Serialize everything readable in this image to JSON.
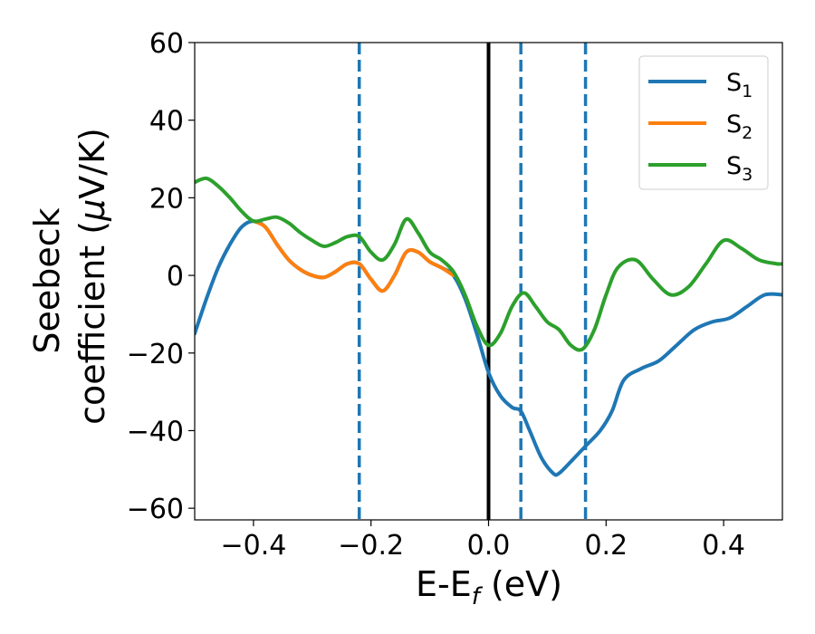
{
  "chart_data": {
    "type": "line",
    "xlabel": {
      "main": "E-E",
      "sub": "f",
      "unit": " (eV)"
    },
    "ylabel": {
      "line1": "Seebeck",
      "line2": "coefficient  (",
      "mu": "μ",
      "unit": "V/K)"
    },
    "xlim": [
      -0.5,
      0.5
    ],
    "ylim": [
      -63,
      60
    ],
    "xticks": [
      {
        "value": -0.4,
        "label": "−0.4"
      },
      {
        "value": -0.2,
        "label": "−0.2"
      },
      {
        "value": 0.0,
        "label": "0.0"
      },
      {
        "value": 0.2,
        "label": "0.2"
      },
      {
        "value": 0.4,
        "label": "0.4"
      }
    ],
    "yticks": [
      {
        "value": 60,
        "label": "60"
      },
      {
        "value": 40,
        "label": "40"
      },
      {
        "value": 20,
        "label": "20"
      },
      {
        "value": 0,
        "label": "0"
      },
      {
        "value": -20,
        "label": "−20"
      },
      {
        "value": -40,
        "label": "−40"
      },
      {
        "value": -60,
        "label": "−60"
      }
    ],
    "grid": false,
    "legend_position": "top-right",
    "series": [
      {
        "name": "S",
        "sub": "1",
        "color": "#1f77b4",
        "x": [
          -0.5,
          -0.48,
          -0.46,
          -0.44,
          -0.42,
          -0.4,
          -0.38,
          -0.36,
          -0.34,
          -0.32,
          -0.3,
          -0.28,
          -0.26,
          -0.24,
          -0.22,
          -0.2,
          -0.18,
          -0.16,
          -0.14,
          -0.12,
          -0.1,
          -0.08,
          -0.06,
          -0.04,
          -0.02,
          0.0,
          0.02,
          0.04,
          0.055,
          0.07,
          0.09,
          0.11,
          0.12,
          0.14,
          0.165,
          0.19,
          0.21,
          0.23,
          0.26,
          0.29,
          0.32,
          0.35,
          0.38,
          0.41,
          0.44,
          0.47,
          0.5
        ],
        "y": [
          -15,
          -6,
          2,
          8,
          12.5,
          14,
          12.5,
          8,
          4,
          1.5,
          0,
          -0.5,
          1,
          3,
          3,
          -1,
          -4,
          0,
          6,
          6,
          3.5,
          2,
          0,
          -6,
          -15,
          -25,
          -31,
          -34,
          -35,
          -40,
          -47,
          -51,
          -51,
          -48,
          -44,
          -40,
          -35,
          -27,
          -24,
          -22,
          -18,
          -14,
          -12,
          -11,
          -8,
          -5,
          -5
        ]
      },
      {
        "name": "S",
        "sub": "2",
        "color": "#ff7f0e",
        "x": [
          -0.4,
          -0.38,
          -0.36,
          -0.34,
          -0.32,
          -0.3,
          -0.28,
          -0.26,
          -0.24,
          -0.22,
          -0.2,
          -0.18,
          -0.16,
          -0.14,
          -0.12,
          -0.1,
          -0.08,
          -0.06
        ],
        "y": [
          14,
          12.5,
          8,
          4,
          1.5,
          0,
          -0.5,
          1,
          3,
          3,
          -1,
          -4,
          0,
          6,
          6,
          3.5,
          2,
          0
        ]
      },
      {
        "name": "S",
        "sub": "3",
        "color": "#2ca02c",
        "x": [
          -0.5,
          -0.48,
          -0.46,
          -0.44,
          -0.42,
          -0.4,
          -0.38,
          -0.36,
          -0.34,
          -0.32,
          -0.3,
          -0.28,
          -0.26,
          -0.24,
          -0.22,
          -0.2,
          -0.18,
          -0.16,
          -0.14,
          -0.12,
          -0.1,
          -0.08,
          -0.06,
          -0.04,
          -0.02,
          0.0,
          0.02,
          0.04,
          0.06,
          0.08,
          0.1,
          0.12,
          0.14,
          0.16,
          0.18,
          0.2,
          0.22,
          0.25,
          0.28,
          0.31,
          0.34,
          0.37,
          0.4,
          0.43,
          0.46,
          0.49,
          0.5
        ],
        "y": [
          24,
          25,
          23,
          20,
          16.5,
          14,
          14.5,
          15,
          13.5,
          11,
          9,
          7.5,
          8.5,
          10,
          10,
          6,
          4,
          8,
          14.5,
          11,
          6,
          4,
          1,
          -5,
          -13,
          -18,
          -15,
          -8,
          -4.5,
          -8,
          -12,
          -14,
          -18,
          -19,
          -14,
          -5,
          2,
          4,
          -1,
          -5,
          -3,
          3,
          9,
          7,
          4,
          3,
          3
        ]
      }
    ],
    "vlines": [
      {
        "x": -0.22,
        "style": "dashed",
        "color": "#1f77b4"
      },
      {
        "x": 0.0,
        "style": "solid",
        "color": "#000000"
      },
      {
        "x": 0.055,
        "style": "dashed",
        "color": "#1f77b4"
      },
      {
        "x": 0.165,
        "style": "dashed",
        "color": "#1f77b4"
      }
    ]
  }
}
